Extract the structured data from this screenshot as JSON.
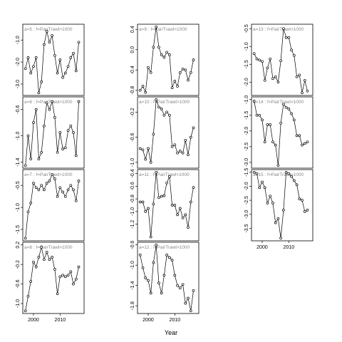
{
  "chart_data": {
    "type": "line",
    "xlabel": "Year",
    "ylabel": "",
    "x_ticks": [
      2000,
      2010
    ],
    "panels": [
      {
        "title": "a=5 : f=PairTrawl>1000",
        "ylim": [
          -3.4,
          -0.4
        ],
        "y_ticks": [
          -3.0,
          -2.0,
          -1.0
        ],
        "values": [
          -2.3,
          -1.8,
          -2.5,
          -2.2,
          -1.8,
          -3.4,
          -2.9,
          -1.2,
          -0.6,
          -1.1,
          -0.8,
          -1.7,
          -2.5,
          -1.9,
          -2.7,
          -2.5,
          -2.2,
          -1.8,
          -1.6,
          -2.4,
          -1.1
        ]
      },
      {
        "title": "a=6 : f=PairTrawl>1000",
        "ylim": [
          -1.45,
          -0.45
        ],
        "y_ticks": [
          -1.4,
          -1.0,
          -0.6
        ],
        "values": [
          -1.45,
          -1.0,
          -1.35,
          -0.8,
          -0.6,
          -1.35,
          -1.25,
          -0.85,
          -0.5,
          -0.6,
          -0.48,
          -0.72,
          -1.25,
          -0.95,
          -1.2,
          -1.18,
          -0.92,
          -0.85,
          -0.95,
          -1.3,
          -0.48
        ]
      },
      {
        "title": "a=7 : f=PairTrawl>1000",
        "ylim": [
          -1.7,
          -0.2
        ],
        "y_ticks": [
          -1.5,
          -1.0,
          -0.5
        ],
        "values": [
          -1.7,
          -1.1,
          -0.9,
          -0.45,
          -0.55,
          -0.6,
          -0.5,
          -0.6,
          -0.45,
          -0.4,
          -0.25,
          -0.35,
          -0.75,
          -0.55,
          -0.65,
          -0.75,
          -0.6,
          -0.5,
          -0.6,
          -0.85,
          -0.4
        ]
      },
      {
        "title": "a=8 : f=PairTrawl>1000",
        "ylim": [
          -1.15,
          0.2
        ],
        "y_ticks": [
          -1.0,
          -0.6,
          -0.2,
          0.2
        ],
        "values": [
          -1.15,
          -0.85,
          -0.55,
          -0.15,
          -0.25,
          -0.05,
          0.15,
          -0.1,
          0.05,
          -0.1,
          -0.05,
          -0.3,
          -0.8,
          -0.45,
          -0.42,
          -0.45,
          -0.42,
          -0.35,
          -0.6,
          -0.5,
          -0.25
        ]
      },
      {
        "title": "a=9 : f=PairTrawl>1000",
        "ylim": [
          -0.85,
          0.45
        ],
        "y_ticks": [
          -0.8,
          -0.4,
          0.0,
          0.4
        ],
        "values": [
          -0.8,
          -0.72,
          -0.84,
          -0.35,
          -0.45,
          0.05,
          0.45,
          0.05,
          -0.1,
          -0.15,
          -0.05,
          -0.1,
          -0.75,
          -0.62,
          -0.72,
          -0.45,
          -0.38,
          -0.4,
          -0.6,
          -0.45,
          -0.2
        ]
      },
      {
        "title": "a=10 : f=PairTrawl>1000",
        "ylim": [
          -1.05,
          0.0
        ],
        "y_ticks": [
          -1.0,
          -0.6,
          -0.2
        ],
        "values": [
          -0.78,
          -0.8,
          -0.95,
          -0.78,
          -1.0,
          -0.55,
          0.0,
          -0.12,
          -0.15,
          -0.25,
          -0.2,
          -0.25,
          -0.75,
          -0.72,
          -0.85,
          -0.82,
          -0.85,
          -0.65,
          -0.88,
          -0.6,
          -0.45
        ]
      },
      {
        "title": "a=11 : f=PairTrawl>1000",
        "ylim": [
          -1.42,
          -0.38
        ],
        "y_ticks": [
          -1.2,
          -1.0,
          -0.8,
          -0.6,
          -0.4
        ],
        "values": [
          -0.85,
          -0.85,
          -1.0,
          -0.95,
          -1.4,
          -0.88,
          -0.38,
          -0.78,
          -0.76,
          -0.75,
          -0.55,
          -0.45,
          -0.9,
          -0.9,
          -1.05,
          -0.95,
          -1.1,
          -1.05,
          -1.25,
          -0.85,
          -0.62
        ]
      },
      {
        "title": "a=12 : f=PairTrawl>1000",
        "ylim": [
          -1.9,
          -0.6
        ],
        "y_ticks": [
          -1.8,
          -1.4,
          -1.0,
          -0.6
        ],
        "values": [
          -0.8,
          -1.05,
          -1.25,
          -1.3,
          -1.55,
          -0.95,
          -0.6,
          -1.35,
          -1.55,
          -1.2,
          -0.8,
          -0.85,
          -0.9,
          -1.2,
          -1.4,
          -1.45,
          -1.38,
          -1.75,
          -1.65,
          -1.9,
          -1.5
        ]
      },
      {
        "title": "a=13 : f=PairTrawl>1000",
        "ylim": [
          -2.3,
          -0.45
        ],
        "y_ticks": [
          -2.0,
          -1.5,
          -1.0,
          -0.5
        ],
        "values": [
          -1.2,
          -1.35,
          -1.38,
          -1.42,
          -1.95,
          -1.6,
          -1.35,
          -1.9,
          -1.85,
          -2.0,
          -1.4,
          -0.5,
          -0.75,
          -0.75,
          -1.1,
          -1.25,
          -1.85,
          -1.8,
          -2.3,
          -1.95,
          -2.25
        ]
      },
      {
        "title": "a=14 : f=PairTrawl>1000",
        "ylim": [
          -3.1,
          -1.0
        ],
        "y_ticks": [
          -3.0,
          -2.5,
          -2.0,
          -1.5,
          -1.0
        ],
        "values": [
          -1.05,
          -1.5,
          -1.5,
          -1.65,
          -2.35,
          -1.8,
          -1.8,
          -2.35,
          -2.45,
          -3.1,
          -1.75,
          -1.15,
          -1.25,
          -1.3,
          -1.45,
          -1.65,
          -2.15,
          -2.15,
          -2.45,
          -2.4,
          -2.35
        ]
      },
      {
        "title": "a=15 : f=PairTrawl>1000",
        "ylim": [
          -3.85,
          -1.5
        ],
        "y_ticks": [
          -3.5,
          -3.0,
          -2.5,
          -2.0,
          -1.5
        ],
        "values": [
          -1.5,
          -1.55,
          -2.05,
          -1.85,
          -2.05,
          -2.6,
          -2.35,
          -2.6,
          -3.3,
          -3.15,
          -3.85,
          -2.85,
          -1.5,
          -1.55,
          -1.65,
          -1.8,
          -1.95,
          -2.45,
          -2.5,
          -2.9,
          -2.85
        ]
      }
    ]
  }
}
